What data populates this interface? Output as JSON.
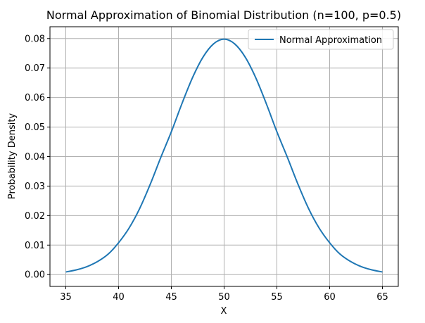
{
  "chart_data": {
    "type": "line",
    "title": "Normal Approximation of Binomial Distribution (n=100, p=0.5)",
    "xlabel": "X",
    "ylabel": "Probability Density",
    "xlim": [
      33.5,
      66.5
    ],
    "ylim": [
      -0.004,
      0.084
    ],
    "xticks": [
      35,
      40,
      45,
      50,
      55,
      60,
      65
    ],
    "yticks": [
      0.0,
      0.01,
      0.02,
      0.03,
      0.04,
      0.05,
      0.06,
      0.07,
      0.08
    ],
    "ytick_labels": [
      "0.00",
      "0.01",
      "0.02",
      "0.03",
      "0.04",
      "0.05",
      "0.06",
      "0.07",
      "0.08"
    ],
    "grid": true,
    "legend": {
      "placement": "top-right"
    },
    "series": [
      {
        "name": "Normal Approximation",
        "color": "#1f77b4",
        "x": [
          35,
          36,
          37,
          38,
          39,
          40,
          41,
          42,
          43,
          44,
          45,
          46,
          47,
          48,
          49,
          50,
          51,
          52,
          53,
          54,
          55,
          56,
          57,
          58,
          59,
          60,
          61,
          62,
          63,
          64,
          65
        ],
        "y": [
          0.0009,
          0.0016,
          0.0027,
          0.0044,
          0.0069,
          0.0108,
          0.0158,
          0.0224,
          0.0306,
          0.0397,
          0.0484,
          0.0579,
          0.0667,
          0.0737,
          0.0782,
          0.0798,
          0.0782,
          0.0737,
          0.0667,
          0.0579,
          0.0484,
          0.0397,
          0.0306,
          0.0224,
          0.0158,
          0.0108,
          0.0069,
          0.0044,
          0.0027,
          0.0016,
          0.0009
        ]
      }
    ]
  }
}
